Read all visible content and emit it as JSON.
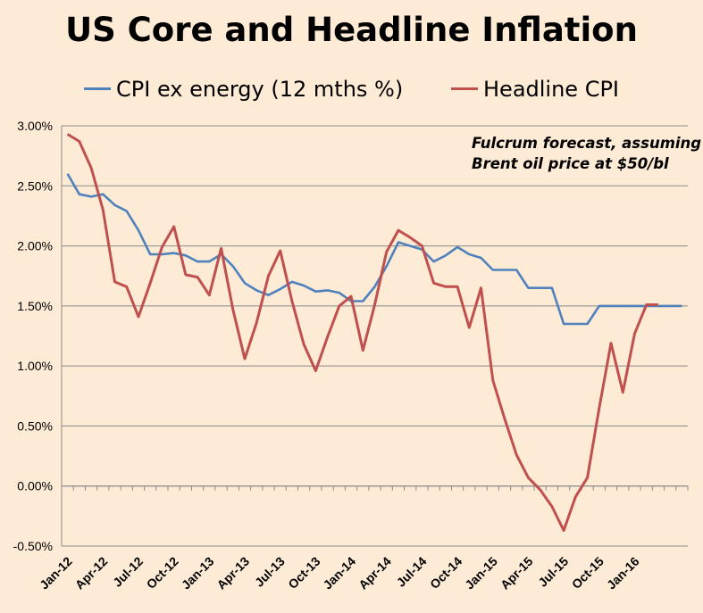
{
  "chart_data": {
    "type": "line",
    "title": "US Core and Headline Inflation",
    "annotation": [
      "Fulcrum forecast, assuming",
      "Brent oil price at $50/bl"
    ],
    "ylim": [
      -0.5,
      3.0
    ],
    "y_ticks": [
      "3.00%",
      "2.50%",
      "2.00%",
      "1.50%",
      "1.00%",
      "0.50%",
      "0.00%",
      "-0.50%"
    ],
    "x_tick_labels": [
      "Jan-12",
      "Apr-12",
      "Jul-12",
      "Oct-12",
      "Jan-13",
      "Apr-13",
      "Jul-13",
      "Oct-13",
      "Jan-14",
      "Apr-14",
      "Jul-14",
      "Oct-14",
      "Jan-15",
      "Apr-15",
      "Jul-15",
      "Oct-15",
      "Jan-16"
    ],
    "x_start": "Jan-12",
    "grid": true,
    "legend_position": "top",
    "series": [
      {
        "name": "CPI ex energy (12 mths %)",
        "color": "#4f81bd",
        "values": [
          2.6,
          2.43,
          2.41,
          2.43,
          2.34,
          2.29,
          2.13,
          1.93,
          1.93,
          1.94,
          1.92,
          1.87,
          1.87,
          1.93,
          1.83,
          1.69,
          1.63,
          1.59,
          1.64,
          1.7,
          1.67,
          1.62,
          1.63,
          1.61,
          1.54,
          1.54,
          1.66,
          1.83,
          2.03,
          2.0,
          1.97,
          1.87,
          1.92,
          1.99,
          1.93,
          1.9,
          1.8,
          1.8,
          1.8,
          1.65,
          1.65,
          1.65,
          1.35,
          1.35,
          1.35,
          1.5,
          1.5,
          1.5,
          1.5,
          1.5,
          1.5,
          1.5,
          1.5
        ]
      },
      {
        "name": "Headline CPI",
        "color": "#c0504d",
        "values": [
          2.93,
          2.87,
          2.65,
          2.3,
          1.7,
          1.66,
          1.41,
          1.69,
          1.99,
          2.16,
          1.76,
          1.74,
          1.59,
          1.98,
          1.47,
          1.06,
          1.36,
          1.75,
          1.96,
          1.54,
          1.18,
          0.96,
          1.24,
          1.5,
          1.58,
          1.13,
          1.51,
          1.95,
          2.13,
          2.07,
          2.0,
          1.69,
          1.66,
          1.66,
          1.32,
          1.65,
          0.88,
          0.56,
          0.26,
          0.07,
          -0.03,
          -0.17,
          -0.37,
          -0.09,
          0.07,
          0.65,
          1.19,
          0.78,
          1.27,
          1.51,
          1.51
        ]
      }
    ]
  }
}
